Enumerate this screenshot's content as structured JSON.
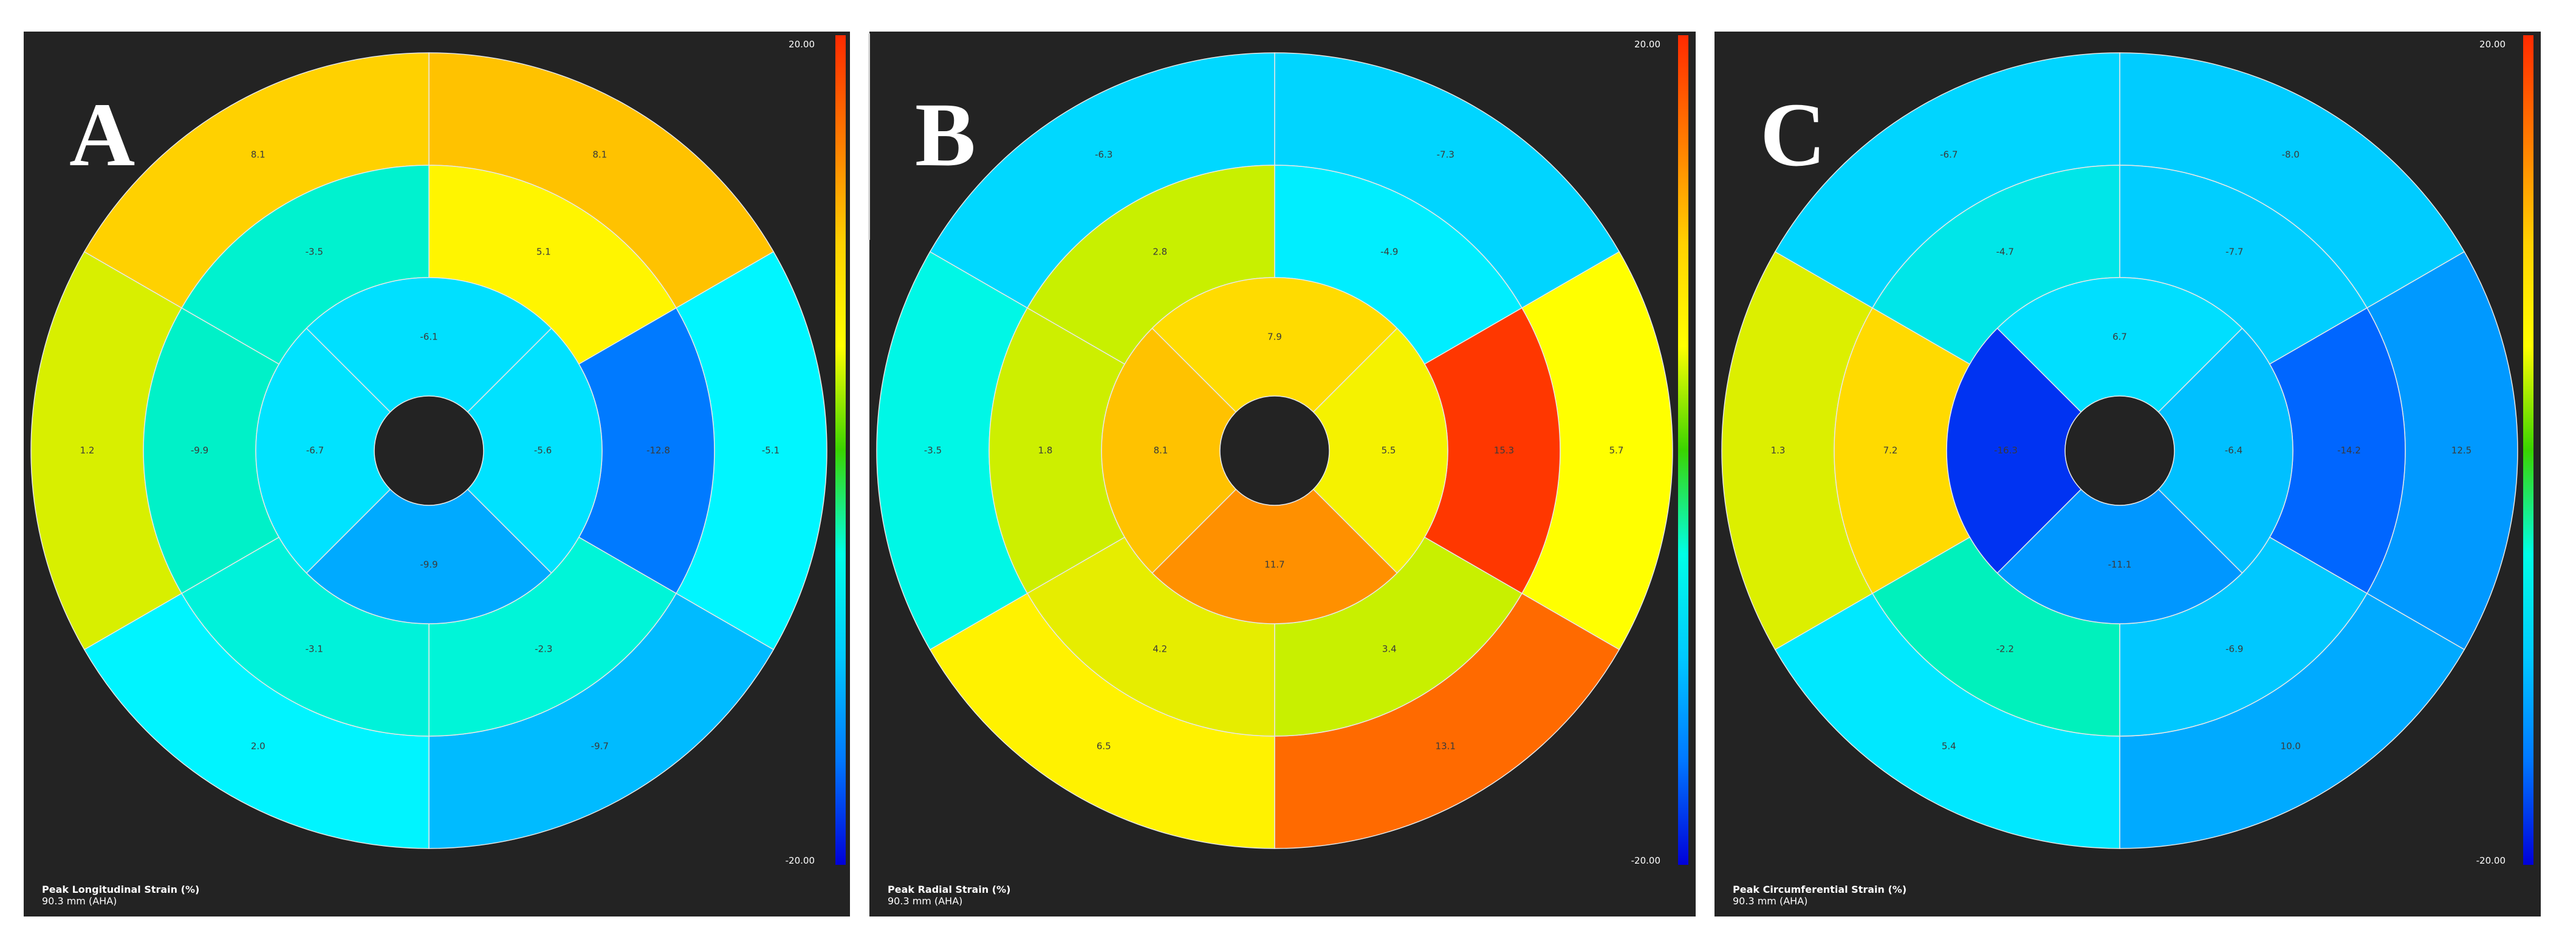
{
  "colors": {
    "panel_bg": "#232323",
    "segment_stroke": "#e8e8e8",
    "label_color": "#3a3a3a",
    "colorbar": [
      "#ff2a00",
      "#ff7a00",
      "#ffd000",
      "#ffff00",
      "#3ad400",
      "#00ffe6",
      "#00c8ff",
      "#0077ff",
      "#0000d8"
    ]
  },
  "panels": [
    {
      "letter": "A",
      "scale_max": "20.00",
      "scale_min": "-20.00",
      "caption_title": "Peak Longitudinal Strain (%)",
      "caption_sub": "90.3 mm (AHA)",
      "segments": [
        {
          "label": "8.1",
          "color": "#ffc200"
        },
        {
          "label": "-5.1",
          "color": "#00f6ff"
        },
        {
          "label": "-9.7",
          "color": "#00bbff"
        },
        {
          "label": "2.0",
          "color": "#00f4ff"
        },
        {
          "label": "1.2",
          "color": "#d8ef00"
        },
        {
          "label": "8.1",
          "color": "#ffd100"
        },
        {
          "label": "5.1",
          "color": "#fff500"
        },
        {
          "label": "-12.8",
          "color": "#007aff"
        },
        {
          "label": "-2.3",
          "color": "#00f5d8"
        },
        {
          "label": "-3.1",
          "color": "#00f2da"
        },
        {
          "label": "-9.9",
          "color": "#00f1c8"
        },
        {
          "label": "-3.5",
          "color": "#00f2cf"
        },
        {
          "label": "-5.6",
          "color": "#00e2ff"
        },
        {
          "label": "-9.9",
          "color": "#00aaff"
        },
        {
          "label": "-6.7",
          "color": "#00e3ff"
        },
        {
          "label": "-6.1",
          "color": "#00e0ff"
        }
      ]
    },
    {
      "letter": "B",
      "scale_max": "20.00",
      "scale_min": "-20.00",
      "caption_title": "Peak Radial Strain (%)",
      "caption_sub": "90.3 mm (AHA)",
      "segments": [
        {
          "label": "-7.3",
          "color": "#00d5ff"
        },
        {
          "label": "5.7",
          "color": "#ffff00"
        },
        {
          "label": "13.1",
          "color": "#ff6a00"
        },
        {
          "label": "6.5",
          "color": "#fff200"
        },
        {
          "label": "-3.5",
          "color": "#00f7e6"
        },
        {
          "label": "-6.3",
          "color": "#00d8ff"
        },
        {
          "label": "-4.9",
          "color": "#00eeff"
        },
        {
          "label": "15.3",
          "color": "#ff3700"
        },
        {
          "label": "3.4",
          "color": "#c8f000"
        },
        {
          "label": "4.2",
          "color": "#e6ed00"
        },
        {
          "label": "1.8",
          "color": "#cdef00"
        },
        {
          "label": "2.8",
          "color": "#c8f000"
        },
        {
          "label": "5.5",
          "color": "#f5f200"
        },
        {
          "label": "11.7",
          "color": "#ff9000"
        },
        {
          "label": "8.1",
          "color": "#ffc200"
        },
        {
          "label": "7.9",
          "color": "#ffdb00"
        }
      ]
    },
    {
      "letter": "C",
      "scale_max": "20.00",
      "scale_min": "-20.00",
      "caption_title": "Peak Circumferential Strain (%)",
      "caption_sub": "90.3 mm (AHA)",
      "segments": [
        {
          "label": "-8.0",
          "color": "#00ccff"
        },
        {
          "label": "12.5",
          "color": "#0099ff"
        },
        {
          "label": "10.0",
          "color": "#00aaff"
        },
        {
          "label": "5.4",
          "color": "#00e8ff"
        },
        {
          "label": "1.3",
          "color": "#dcef00"
        },
        {
          "label": "-6.7",
          "color": "#00d5ff"
        },
        {
          "label": "-7.7",
          "color": "#00ceff"
        },
        {
          "label": "-14.2",
          "color": "#0066ff"
        },
        {
          "label": "-6.9",
          "color": "#00c8ff"
        },
        {
          "label": "-2.2",
          "color": "#00f1bc"
        },
        {
          "label": "7.2",
          "color": "#ffda00"
        },
        {
          "label": "-4.7",
          "color": "#00e6e8"
        },
        {
          "label": "-6.4",
          "color": "#00c0ff"
        },
        {
          "label": "-11.1",
          "color": "#0097ff"
        },
        {
          "label": "-16.3",
          "color": "#0033f2"
        },
        {
          "label": "6.7",
          "color": "#00dfff"
        }
      ]
    }
  ]
}
